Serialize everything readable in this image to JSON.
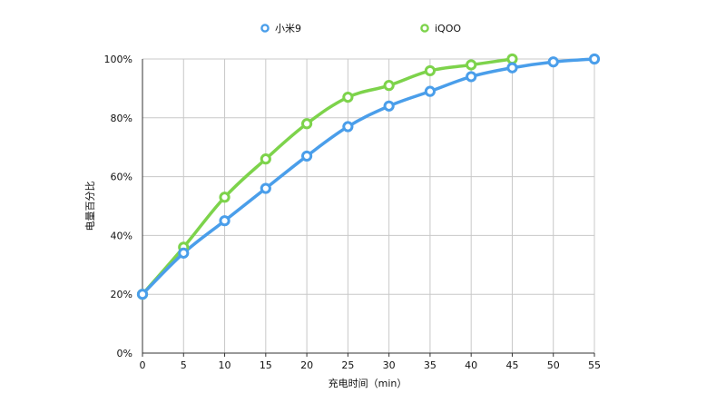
{
  "chart_data": {
    "type": "line",
    "title": "",
    "xlabel": "充电时间（min）",
    "ylabel": "电量百分比",
    "x": [
      0,
      5,
      10,
      15,
      20,
      25,
      30,
      35,
      40,
      45,
      50,
      55
    ],
    "xlim": [
      0,
      55
    ],
    "ylim": [
      0,
      100
    ],
    "x_ticks": [
      "0",
      "5",
      "10",
      "15",
      "20",
      "25",
      "30",
      "35",
      "40",
      "45",
      "50",
      "55"
    ],
    "y_ticks": [
      "0%",
      "20%",
      "40%",
      "60%",
      "80%",
      "100%"
    ],
    "grid": true,
    "legend": "top-center",
    "series": [
      {
        "name": "小米9",
        "color": "#4a9eea",
        "values": [
          20,
          34,
          45,
          56,
          67,
          77,
          84,
          89,
          94,
          97,
          99,
          100
        ]
      },
      {
        "name": "iQOO",
        "color": "#7dd34b",
        "values": [
          20,
          36,
          53,
          66,
          78,
          87,
          91,
          96,
          98,
          100,
          null,
          null
        ]
      }
    ]
  }
}
